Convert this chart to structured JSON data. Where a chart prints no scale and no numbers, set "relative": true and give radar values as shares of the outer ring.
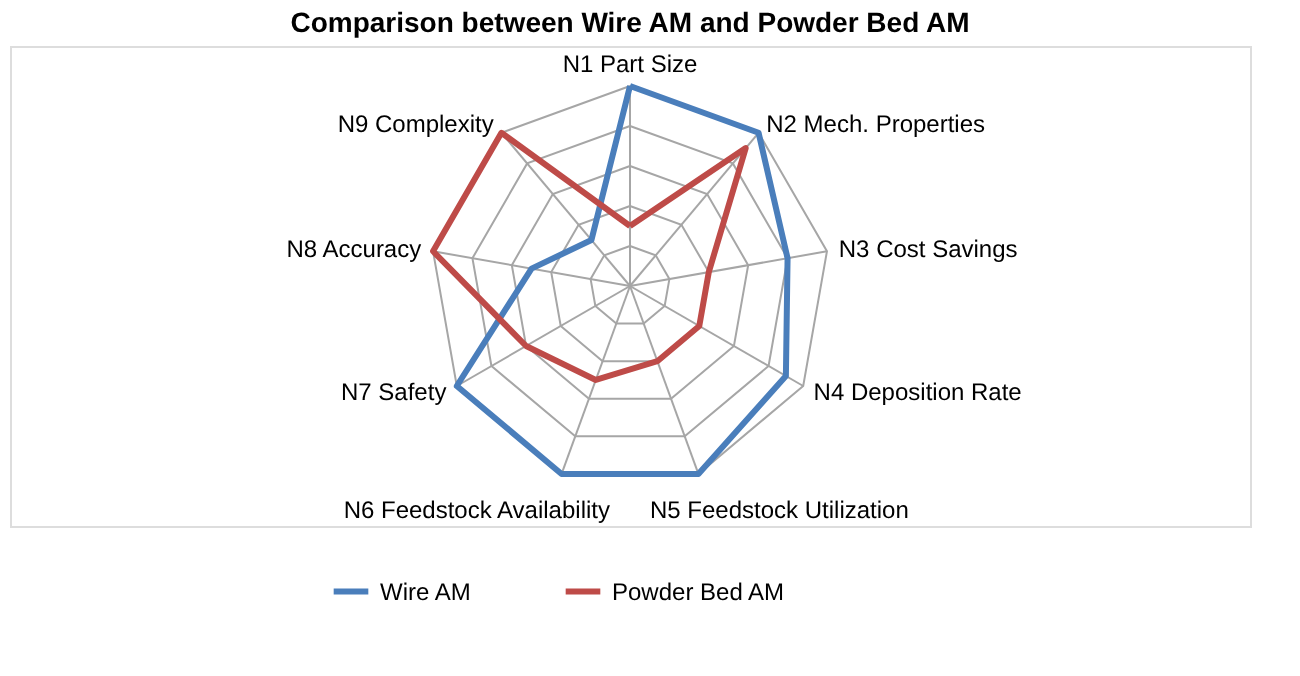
{
  "chart_data": {
    "type": "radar",
    "title": "Comparison between Wire AM and Powder Bed AM",
    "categories": [
      "N1 Part Size",
      "N2 Mech. Properties",
      "N3 Cost Savings",
      "N4 Deposition Rate",
      "N5 Feedstock Utilization",
      "N6 Feedstock Availability",
      "N7 Safety",
      "N8 Accuracy",
      "N9 Complexity"
    ],
    "relative": true,
    "grid": true,
    "legend": "bottom",
    "marker": "none",
    "line_style": "solid",
    "series": [
      {
        "name": "Wire AM",
        "color": "#4a7ebb",
        "values": [
          1.0,
          1.0,
          0.8,
          0.9,
          1.0,
          1.0,
          1.0,
          0.5,
          0.3
        ]
      },
      {
        "name": "Powder Bed AM",
        "color": "#be4b48",
        "values": [
          0.3,
          0.9,
          0.4,
          0.4,
          0.4,
          0.5,
          0.6,
          1.0,
          1.0
        ]
      }
    ]
  }
}
